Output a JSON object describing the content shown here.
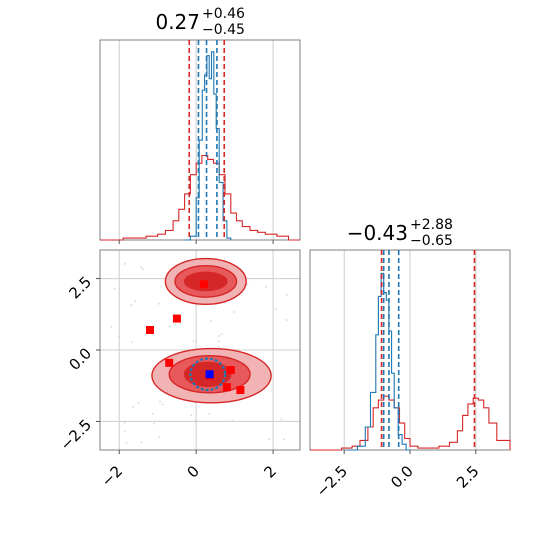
{
  "chart_data": [
    {
      "type": "line",
      "panel": "marginal-x0",
      "title": {
        "value": "0.27",
        "plus": "+0.46",
        "minus": "−0.45"
      },
      "xlim": [
        -2.5,
        2.7
      ],
      "series": [
        {
          "color": "#d62728",
          "style": "step",
          "x": [
            -2.5,
            -2.2,
            -1.9,
            -1.6,
            -1.3,
            -1.0,
            -0.8,
            -0.6,
            -0.45,
            -0.3,
            -0.15,
            0.0,
            0.15,
            0.3,
            0.45,
            0.6,
            0.75,
            0.9,
            1.05,
            1.2,
            1.4,
            1.6,
            1.8,
            2.1,
            2.4,
            2.7
          ],
          "y": [
            0.0,
            0.0,
            0.01,
            0.01,
            0.02,
            0.03,
            0.05,
            0.1,
            0.16,
            0.24,
            0.34,
            0.4,
            0.44,
            0.42,
            0.4,
            0.34,
            0.24,
            0.14,
            0.1,
            0.07,
            0.05,
            0.04,
            0.03,
            0.02,
            0.0,
            0.0
          ]
        },
        {
          "color": "#1f77b4",
          "style": "step",
          "x": [
            -0.3,
            -0.15,
            0.0,
            0.08,
            0.16,
            0.22,
            0.28,
            0.34,
            0.4,
            0.46,
            0.52,
            0.6,
            0.7,
            0.8,
            0.9
          ],
          "y": [
            0.0,
            0.02,
            0.22,
            0.52,
            0.78,
            0.86,
            0.96,
            0.84,
            0.98,
            0.76,
            0.58,
            0.3,
            0.1,
            0.01,
            0.0
          ]
        }
      ],
      "vlines": [
        {
          "x": -0.18,
          "color": "#d62728"
        },
        {
          "x": 0.06,
          "color": "#1f77b4"
        },
        {
          "x": 0.27,
          "color": "#1f77b4"
        },
        {
          "x": 0.54,
          "color": "#1f77b4"
        },
        {
          "x": 0.73,
          "color": "#d62728"
        }
      ]
    },
    {
      "type": "scatter",
      "panel": "joint",
      "xlim": [
        -2.5,
        2.7
      ],
      "ylim": [
        -3.5,
        3.5
      ],
      "xticks": [
        "−2",
        "0",
        "2"
      ],
      "xtick_values": [
        -2,
        0,
        2
      ],
      "yticks": [
        "−2.5",
        "0.0",
        "2.5"
      ],
      "ytick_values": [
        -2.5,
        0.0,
        2.5
      ],
      "contours": [
        {
          "cx": 0.25,
          "cy": 2.4,
          "rx": 1.05,
          "ry": 0.8,
          "fill": "#f2b3b4"
        },
        {
          "cx": 0.25,
          "cy": 2.4,
          "rx": 0.8,
          "ry": 0.55,
          "fill": "#e8595b"
        },
        {
          "cx": 0.25,
          "cy": 2.4,
          "rx": 0.55,
          "ry": 0.32,
          "fill": "#d62728"
        },
        {
          "cx": 0.4,
          "cy": -0.9,
          "rx": 1.55,
          "ry": 0.95,
          "fill": "#f2b3b4"
        },
        {
          "cx": 0.35,
          "cy": -0.85,
          "rx": 1.05,
          "ry": 0.65,
          "fill": "#e8595b"
        },
        {
          "cx": 0.3,
          "cy": -0.85,
          "rx": 0.6,
          "ry": 0.42,
          "fill": "#d62728"
        },
        {
          "cx": 0.3,
          "cy": -0.85,
          "rx": 0.45,
          "ry": 0.55,
          "fill": "#1f77b4",
          "outline": true
        }
      ],
      "red_markers": [
        {
          "x": 0.2,
          "y": 2.3
        },
        {
          "x": -0.5,
          "y": 1.1
        },
        {
          "x": -1.2,
          "y": 0.7
        },
        {
          "x": -0.7,
          "y": -0.45
        },
        {
          "x": 0.9,
          "y": -0.7
        },
        {
          "x": 0.8,
          "y": -1.3
        },
        {
          "x": 1.15,
          "y": -1.4
        },
        {
          "x": 0.35,
          "y": -0.9
        }
      ],
      "blue_markers": [
        {
          "x": 0.35,
          "y": -0.85
        }
      ]
    },
    {
      "type": "line",
      "panel": "marginal-x1",
      "title": {
        "value": "−0.43",
        "plus": "+2.88",
        "minus": "−0.65"
      },
      "xlim": [
        -3.8,
        3.8
      ],
      "xticks": [
        "−2.5",
        "0.0",
        "2.5"
      ],
      "xtick_values": [
        -2.5,
        0.0,
        2.5
      ],
      "series": [
        {
          "color": "#d62728",
          "style": "step",
          "x": [
            -3.8,
            -3.0,
            -2.6,
            -2.2,
            -1.9,
            -1.6,
            -1.4,
            -1.2,
            -1.0,
            -0.8,
            -0.6,
            -0.4,
            -0.2,
            0.0,
            0.3,
            0.7,
            1.1,
            1.5,
            1.8,
            2.0,
            2.2,
            2.4,
            2.6,
            2.8,
            3.0,
            3.3,
            3.8
          ],
          "y": [
            0.0,
            0.0,
            0.01,
            0.02,
            0.05,
            0.12,
            0.22,
            0.26,
            0.28,
            0.26,
            0.22,
            0.14,
            0.06,
            0.02,
            0.01,
            0.01,
            0.02,
            0.04,
            0.1,
            0.18,
            0.24,
            0.27,
            0.26,
            0.22,
            0.14,
            0.05,
            0.0
          ]
        },
        {
          "color": "#1f77b4",
          "style": "step",
          "x": [
            -2.4,
            -2.0,
            -1.7,
            -1.5,
            -1.3,
            -1.2,
            -1.1,
            -1.0,
            -0.9,
            -0.8,
            -0.7,
            -0.6,
            -0.45,
            -0.3,
            -0.15,
            0.0
          ],
          "y": [
            0.0,
            0.02,
            0.12,
            0.3,
            0.6,
            0.8,
            0.92,
            0.82,
            0.78,
            0.62,
            0.4,
            0.22,
            0.08,
            0.03,
            0.0,
            0.0
          ]
        }
      ],
      "vlines": [
        {
          "x": -1.08,
          "color": "#d62728"
        },
        {
          "x": -1.0,
          "color": "#1f77b4"
        },
        {
          "x": -0.8,
          "color": "#1f77b4"
        },
        {
          "x": -0.43,
          "color": "#1f77b4"
        },
        {
          "x": 2.45,
          "color": "#d62728"
        }
      ]
    }
  ]
}
